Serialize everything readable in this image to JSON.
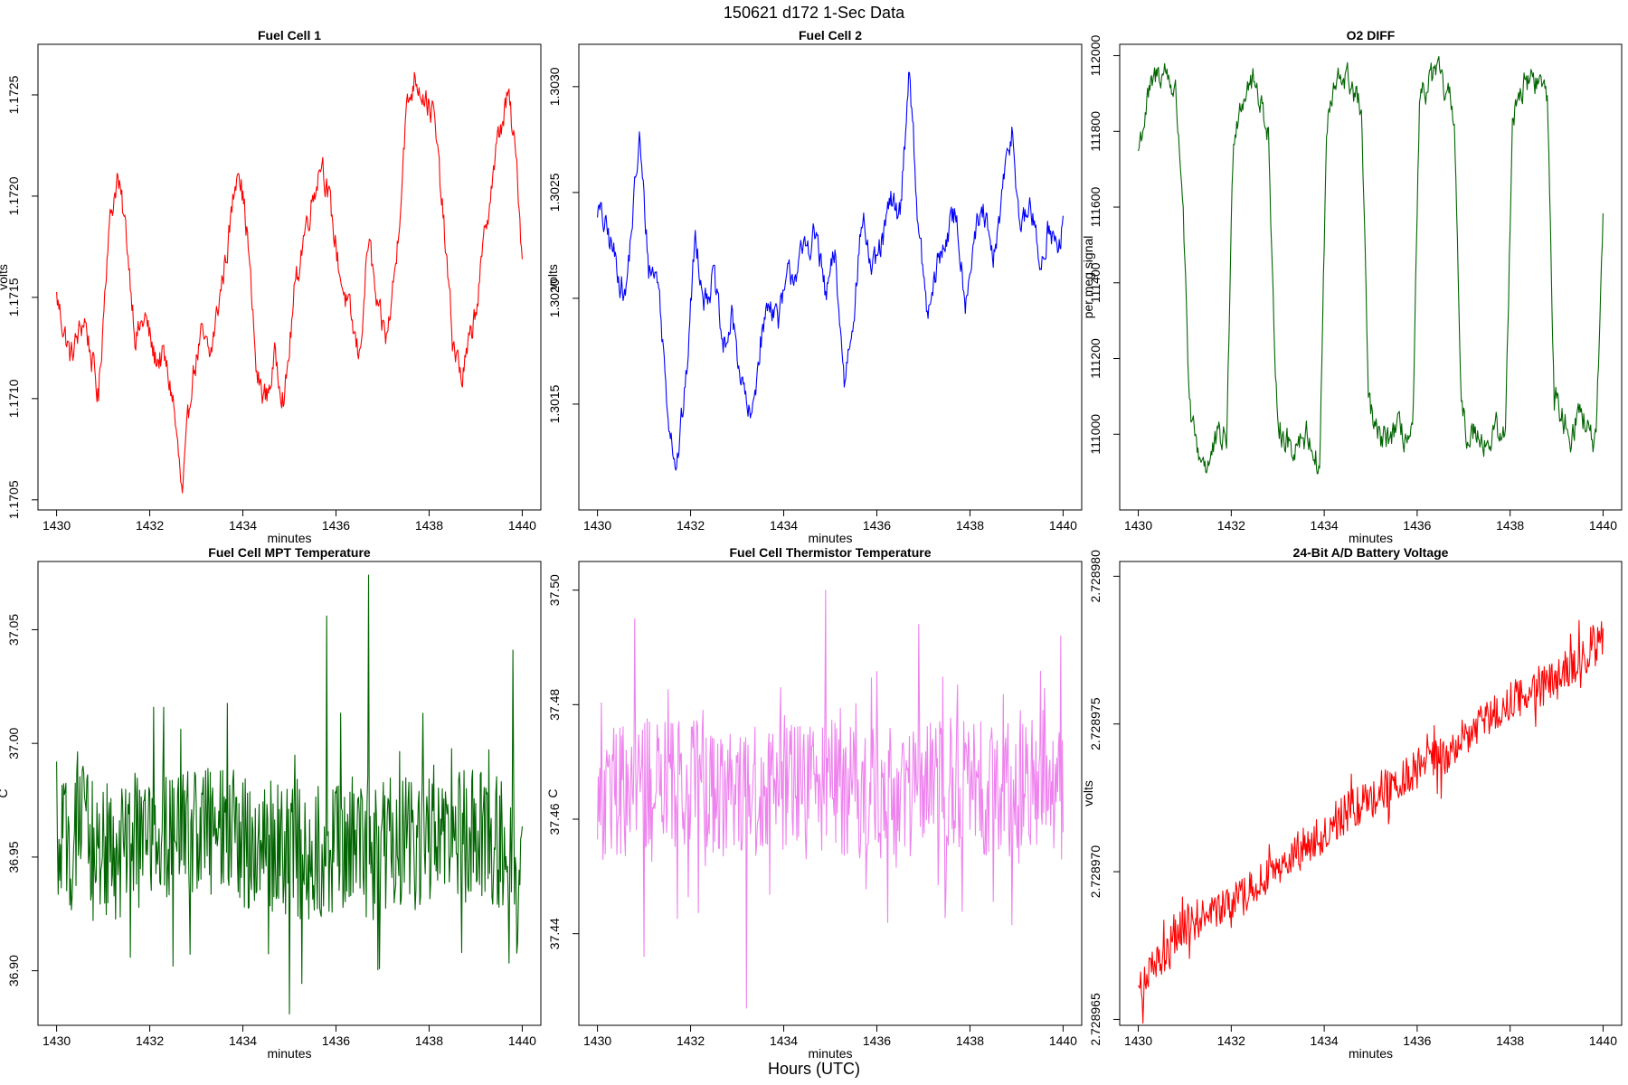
{
  "figure": {
    "title": "150621    d172    1-Sec Data",
    "xlabel": "Hours (UTC)"
  },
  "colors": {
    "red": "#ff0000",
    "blue": "#0000ff",
    "green": "#006400",
    "violet": "#ee82ee",
    "axis": "#000000"
  },
  "chart_data": [
    {
      "type": "line",
      "title": "Fuel Cell 1",
      "xlabel": "minutes",
      "ylabel": "volts",
      "color": "red",
      "xlim": [
        1429.6,
        1440.4
      ],
      "ylim": [
        1.17045,
        1.17275
      ],
      "xticks": [
        "1430",
        "1432",
        "1434",
        "1436",
        "1438",
        "1440"
      ],
      "yticks": [
        "1.1705",
        "1.1710",
        "1.1715",
        "1.1720",
        "1.1725"
      ],
      "series": [
        {
          "name": "Fuel Cell 1",
          "x": [
            1430.0,
            1430.3,
            1430.6,
            1430.9,
            1431.1,
            1431.3,
            1431.5,
            1431.7,
            1431.9,
            1432.1,
            1432.3,
            1432.5,
            1432.7,
            1432.9,
            1433.1,
            1433.3,
            1433.5,
            1433.7,
            1433.9,
            1434.1,
            1434.3,
            1434.5,
            1434.7,
            1434.9,
            1435.1,
            1435.3,
            1435.5,
            1435.7,
            1435.9,
            1436.1,
            1436.3,
            1436.5,
            1436.7,
            1436.9,
            1437.1,
            1437.3,
            1437.5,
            1437.7,
            1437.9,
            1438.1,
            1438.3,
            1438.5,
            1438.7,
            1438.9,
            1439.1,
            1439.3,
            1439.5,
            1439.7,
            1439.9,
            1440.0
          ],
          "values": [
            1.1715,
            1.1712,
            1.1714,
            1.171,
            1.1718,
            1.1721,
            1.1718,
            1.1713,
            1.1714,
            1.1712,
            1.1712,
            1.171,
            1.1705,
            1.1711,
            1.1713,
            1.1712,
            1.1715,
            1.1718,
            1.1722,
            1.1718,
            1.1711,
            1.171,
            1.1712,
            1.171,
            1.1715,
            1.1718,
            1.172,
            1.1722,
            1.1719,
            1.1716,
            1.1714,
            1.1712,
            1.1718,
            1.1714,
            1.1713,
            1.1717,
            1.1724,
            1.1726,
            1.1725,
            1.1724,
            1.1719,
            1.1713,
            1.1711,
            1.1713,
            1.1716,
            1.172,
            1.1723,
            1.1725,
            1.1721,
            1.1717
          ]
        }
      ]
    },
    {
      "type": "line",
      "title": "Fuel Cell 2",
      "xlabel": "minutes",
      "ylabel": "volts",
      "color": "blue",
      "xlim": [
        1429.6,
        1440.4
      ],
      "ylim": [
        1.301,
        1.3032
      ],
      "xticks": [
        "1430",
        "1432",
        "1434",
        "1436",
        "1438",
        "1440"
      ],
      "yticks": [
        "1.3015",
        "1.3020",
        "1.3025",
        "1.3030"
      ],
      "series": [
        {
          "name": "Fuel Cell 2",
          "x": [
            1430.0,
            1430.3,
            1430.6,
            1430.9,
            1431.1,
            1431.3,
            1431.5,
            1431.7,
            1431.9,
            1432.1,
            1432.3,
            1432.5,
            1432.7,
            1432.9,
            1433.1,
            1433.3,
            1433.5,
            1433.7,
            1433.9,
            1434.1,
            1434.3,
            1434.5,
            1434.7,
            1434.9,
            1435.1,
            1435.3,
            1435.5,
            1435.7,
            1435.9,
            1436.1,
            1436.3,
            1436.5,
            1436.7,
            1436.9,
            1437.1,
            1437.3,
            1437.5,
            1437.7,
            1437.9,
            1438.1,
            1438.3,
            1438.5,
            1438.7,
            1438.9,
            1439.1,
            1439.3,
            1439.5,
            1439.7,
            1439.9,
            1440.0
          ],
          "values": [
            1.30243,
            1.30225,
            1.302,
            1.30275,
            1.30215,
            1.3021,
            1.3015,
            1.3012,
            1.3016,
            1.3023,
            1.302,
            1.3021,
            1.30175,
            1.3019,
            1.3016,
            1.3014,
            1.3018,
            1.302,
            1.3019,
            1.3021,
            1.30215,
            1.30225,
            1.3023,
            1.302,
            1.3022,
            1.3016,
            1.30195,
            1.3024,
            1.3021,
            1.30225,
            1.30245,
            1.3024,
            1.3031,
            1.3023,
            1.3019,
            1.30215,
            1.3023,
            1.3024,
            1.302,
            1.3023,
            1.3024,
            1.30215,
            1.3025,
            1.3028,
            1.3023,
            1.30245,
            1.30215,
            1.30235,
            1.3022,
            1.30235
          ]
        }
      ]
    },
    {
      "type": "line",
      "title": "O2 DIFF",
      "xlabel": "minutes",
      "ylabel": "per meg signal",
      "color": "green",
      "xlim": [
        1429.6,
        1440.4
      ],
      "ylim": [
        110800,
        112030
      ],
      "xticks": [
        "1430",
        "1432",
        "1434",
        "1436",
        "1438",
        "1440"
      ],
      "yticks": [
        "111000",
        "111200",
        "111400",
        "111600",
        "111800",
        "112000"
      ],
      "series": [
        {
          "name": "O2 DIFF",
          "x": [
            1430.0,
            1430.2,
            1430.4,
            1430.6,
            1430.8,
            1430.95,
            1431.1,
            1431.3,
            1431.5,
            1431.7,
            1431.9,
            1432.05,
            1432.2,
            1432.4,
            1432.6,
            1432.8,
            1432.95,
            1433.1,
            1433.3,
            1433.5,
            1433.7,
            1433.9,
            1434.05,
            1434.2,
            1434.4,
            1434.6,
            1434.8,
            1434.95,
            1435.1,
            1435.3,
            1435.5,
            1435.7,
            1435.9,
            1436.05,
            1436.2,
            1436.4,
            1436.6,
            1436.8,
            1436.95,
            1437.1,
            1437.3,
            1437.5,
            1437.7,
            1437.9,
            1438.05,
            1438.2,
            1438.4,
            1438.6,
            1438.8,
            1438.95,
            1439.1,
            1439.3,
            1439.5,
            1439.7,
            1439.85,
            1440.0
          ],
          "values": [
            111750,
            111880,
            111950,
            111960,
            111900,
            111650,
            111050,
            110950,
            110920,
            110980,
            110990,
            111800,
            111880,
            111940,
            111900,
            111800,
            111100,
            111000,
            110960,
            111000,
            110990,
            110900,
            111800,
            111900,
            111950,
            111920,
            111850,
            111100,
            111000,
            110980,
            111010,
            111000,
            110980,
            111850,
            111920,
            111960,
            111900,
            111850,
            111050,
            110990,
            111020,
            110970,
            111010,
            110990,
            111850,
            111900,
            111940,
            111930,
            111900,
            111100,
            111050,
            111000,
            111070,
            111000,
            110970,
            111540
          ]
        }
      ]
    },
    {
      "type": "line",
      "title": "Fuel Cell MPT Temperature",
      "xlabel": "minutes",
      "ylabel": "C",
      "color": "green",
      "xlim": [
        1429.6,
        1440.4
      ],
      "ylim": [
        36.876,
        37.08
      ],
      "xticks": [
        "1430",
        "1432",
        "1434",
        "1436",
        "1438",
        "1440"
      ],
      "yticks": [
        "36.90",
        "36.95",
        "37.00",
        "37.05"
      ],
      "series": [
        {
          "name": "Fuel Cell MPT Temperature",
          "x": [
            1430.0,
            1430.5,
            1431.0,
            1431.5,
            1432.0,
            1432.5,
            1433.0,
            1433.5,
            1434.0,
            1434.5,
            1435.0,
            1435.5,
            1436.0,
            1436.5,
            1437.0,
            1437.5,
            1438.0,
            1438.5,
            1439.0,
            1439.5,
            1440.0
          ],
          "values": [
            36.95,
            36.96,
            36.955,
            36.95,
            36.962,
            36.958,
            36.965,
            36.96,
            36.958,
            36.955,
            36.952,
            36.95,
            36.955,
            36.96,
            36.957,
            36.955,
            36.956,
            36.958,
            36.96,
            36.955,
            36.95
          ],
          "spread": 0.03,
          "extremes": [
            {
              "x": 1435.0,
              "value": 36.881
            },
            {
              "x": 1436.7,
              "value": 37.074
            },
            {
              "x": 1435.8,
              "value": 37.056
            },
            {
              "x": 1432.5,
              "value": 36.902
            },
            {
              "x": 1438.7,
              "value": 36.908
            },
            {
              "x": 1439.8,
              "value": 37.041
            }
          ]
        }
      ]
    },
    {
      "type": "line",
      "title": "Fuel Cell Thermistor Temperature",
      "xlabel": "minutes",
      "ylabel": "C",
      "color": "violet",
      "xlim": [
        1429.6,
        1440.4
      ],
      "ylim": [
        37.424,
        37.505
      ],
      "xticks": [
        "1430",
        "1432",
        "1434",
        "1436",
        "1438",
        "1440"
      ],
      "yticks": [
        "37.44",
        "37.46",
        "37.48",
        "37.50"
      ],
      "series": [
        {
          "name": "Fuel Cell Thermistor Temperature",
          "x": [
            1430.0,
            1430.5,
            1431.0,
            1431.5,
            1432.0,
            1432.5,
            1433.0,
            1433.5,
            1434.0,
            1434.5,
            1435.0,
            1435.5,
            1436.0,
            1436.5,
            1437.0,
            1437.5,
            1438.0,
            1438.5,
            1439.0,
            1439.5,
            1440.0
          ],
          "values": [
            37.463,
            37.465,
            37.466,
            37.465,
            37.466,
            37.465,
            37.466,
            37.465,
            37.466,
            37.465,
            37.466,
            37.465,
            37.464,
            37.466,
            37.465,
            37.466,
            37.465,
            37.466,
            37.465,
            37.466,
            37.465
          ],
          "spread": 0.012,
          "extremes": [
            {
              "x": 1433.2,
              "value": 37.427
            },
            {
              "x": 1434.9,
              "value": 37.5
            },
            {
              "x": 1430.8,
              "value": 37.495
            },
            {
              "x": 1439.95,
              "value": 37.492
            },
            {
              "x": 1431.0,
              "value": 37.436
            },
            {
              "x": 1436.9,
              "value": 37.494
            }
          ]
        }
      ]
    },
    {
      "type": "line",
      "title": "24-Bit A/D Battery Voltage",
      "xlabel": "minutes",
      "ylabel": "volts",
      "color": "red",
      "xlim": [
        1429.6,
        1440.4
      ],
      "ylim": [
        2.7289648,
        2.7289805
      ],
      "xticks": [
        "1430",
        "1432",
        "1434",
        "1436",
        "1438",
        "1440"
      ],
      "yticks": [
        "2.728965",
        "2.728970",
        "2.728975",
        "2.728980"
      ],
      "series": [
        {
          "name": "24-Bit A/D Battery Voltage",
          "x": [
            1430.0,
            1430.5,
            1431.0,
            1431.5,
            1432.0,
            1432.5,
            1433.0,
            1433.5,
            1434.0,
            1434.5,
            1435.0,
            1435.5,
            1436.0,
            1436.5,
            1437.0,
            1437.5,
            1438.0,
            1438.5,
            1439.0,
            1439.5,
            1440.0
          ],
          "values": [
            2.728966,
            2.728967,
            2.7289682,
            2.7289686,
            2.7289688,
            2.7289695,
            2.72897,
            2.7289708,
            2.7289712,
            2.728972,
            2.7289725,
            2.728973,
            2.7289735,
            2.7289738,
            2.7289745,
            2.7289752,
            2.7289757,
            2.7289762,
            2.7289765,
            2.7289772,
            2.728978
          ],
          "spread": 7e-07
        }
      ]
    }
  ]
}
